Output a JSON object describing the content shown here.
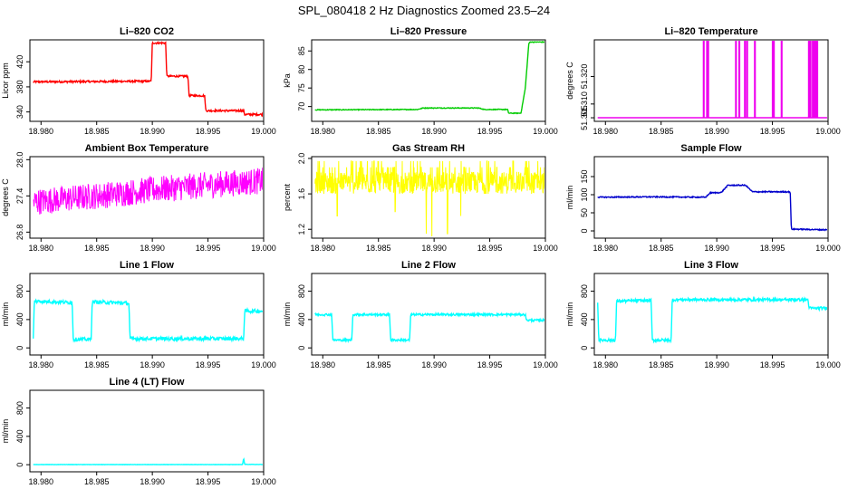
{
  "figure_title": "SPL_080418  2 Hz Diagnostics Zoomed 23.5–24",
  "chart_data": [
    {
      "id": "co2",
      "type": "line",
      "title": "Li–820 CO2",
      "xlabel": "",
      "ylabel": "Licor ppm",
      "color": "#ff0000",
      "xlim": [
        18.979,
        19.0
      ],
      "ylim": [
        325,
        455
      ],
      "xticks": [
        18.98,
        18.985,
        18.99,
        18.995,
        19.0
      ],
      "xtick_labels": [
        "18.980",
        "18.985",
        "18.990",
        "18.995",
        "19.000"
      ],
      "yticks": [
        340,
        380,
        420
      ],
      "ytick_labels": [
        "340",
        "380",
        "420"
      ],
      "noise": 1.5,
      "series": [
        {
          "x": [
            18.9793,
            18.9899,
            18.99,
            18.9912,
            18.9913,
            18.9932,
            18.9933,
            18.9947,
            18.9948,
            18.9982,
            18.9983,
            18.99995
          ],
          "y": [
            388,
            389,
            450,
            450,
            397,
            397,
            366,
            366,
            342,
            342,
            336,
            336
          ]
        }
      ]
    },
    {
      "id": "pressure",
      "type": "line",
      "title": "Li–820 Pressure",
      "xlabel": "",
      "ylabel": "kPa",
      "color": "#00cc00",
      "xlim": [
        18.979,
        19.0
      ],
      "ylim": [
        66,
        88
      ],
      "xticks": [
        18.98,
        18.985,
        18.99,
        18.995,
        19.0
      ],
      "xtick_labels": [
        "18.980",
        "18.985",
        "18.990",
        "18.995",
        "19.000"
      ],
      "yticks": [
        70,
        75,
        80,
        85
      ],
      "ytick_labels": [
        "70",
        "75",
        "80",
        "85"
      ],
      "noise": 0.1,
      "series": [
        {
          "x": [
            18.9793,
            18.9885,
            18.989,
            18.994,
            18.9945,
            18.9966,
            18.9967,
            18.9978,
            18.9982,
            18.9985,
            18.9986,
            19.0
          ],
          "y": [
            69.1,
            69.2,
            69.6,
            69.6,
            69.2,
            69.2,
            68.2,
            68.2,
            75,
            86.8,
            87.4,
            87.4
          ]
        }
      ]
    },
    {
      "id": "temperature",
      "type": "line",
      "title": "Li–820 Temperature",
      "xlabel": "",
      "ylabel": "degrees C",
      "color": "#ee00ee",
      "xlim": [
        18.979,
        19.0
      ],
      "ylim": [
        51.3037,
        51.3333
      ],
      "xticks": [
        18.98,
        18.985,
        18.99,
        18.995,
        19.0
      ],
      "xtick_labels": [
        "18.980",
        "18.985",
        "18.990",
        "18.995",
        "19.000"
      ],
      "yticks": [
        51.305,
        51.31,
        51.32
      ],
      "ytick_labels": [
        "51.305",
        "51.310",
        "51.320"
      ],
      "baseline": 51.305,
      "spike_top": 51.333,
      "spikes": [
        18.9888,
        18.9891,
        18.9892,
        18.9917,
        18.992,
        18.9925,
        18.9927,
        18.9934,
        18.995,
        18.9951,
        18.9958,
        18.99825,
        18.9984,
        18.9986,
        18.99875,
        18.9989,
        18.999
      ]
    },
    {
      "id": "ambient",
      "type": "line",
      "title": "Ambient Box Temperature",
      "xlabel": "",
      "ylabel": "degrees C",
      "color": "#ff00ff",
      "xlim": [
        18.979,
        19.0
      ],
      "ylim": [
        26.7,
        28.05
      ],
      "xticks": [
        18.98,
        18.985,
        18.99,
        18.995,
        19.0
      ],
      "xtick_labels": [
        "18.980",
        "18.985",
        "18.990",
        "18.995",
        "19.000"
      ],
      "yticks": [
        26.8,
        27.4,
        28.0
      ],
      "ytick_labels": [
        "26.8",
        "27.4",
        "28.0"
      ],
      "noise": 0.22,
      "series": [
        {
          "x": [
            18.9793,
            18.985,
            18.99,
            18.995,
            19.0
          ],
          "y": [
            27.3,
            27.4,
            27.5,
            27.58,
            27.65
          ]
        }
      ]
    },
    {
      "id": "rh",
      "type": "line",
      "title": "Gas Stream RH",
      "xlabel": "",
      "ylabel": "percent",
      "color": "#ffff00",
      "xlim": [
        18.979,
        19.0
      ],
      "ylim": [
        1.1,
        2.02
      ],
      "xticks": [
        18.98,
        18.985,
        18.99,
        18.995,
        19.0
      ],
      "xtick_labels": [
        "18.980",
        "18.985",
        "18.990",
        "18.995",
        "19.000"
      ],
      "yticks": [
        1.2,
        1.6,
        2.0
      ],
      "ytick_labels": [
        "1.2",
        "1.6",
        "2.0"
      ],
      "band": [
        1.6,
        1.85
      ],
      "dips": [
        [
          18.9813,
          1.35
        ],
        [
          18.9893,
          1.15
        ],
        [
          18.9898,
          1.12
        ],
        [
          18.9912,
          1.15
        ],
        [
          18.9924,
          1.35
        ],
        [
          18.9865,
          1.4
        ]
      ],
      "series": [
        {
          "x": [
            18.9793,
            19.0
          ],
          "y": [
            1.72,
            1.72
          ]
        }
      ]
    },
    {
      "id": "sample",
      "type": "line",
      "title": "Sample Flow",
      "xlabel": "",
      "ylabel": "ml/min",
      "color": "#0000cc",
      "xlim": [
        18.979,
        19.0
      ],
      "ylim": [
        -20,
        205
      ],
      "xticks": [
        18.98,
        18.985,
        18.99,
        18.995,
        19.0
      ],
      "xtick_labels": [
        "18.980",
        "18.985",
        "18.990",
        "18.995",
        "19.000"
      ],
      "yticks": [
        0,
        50,
        100,
        150
      ],
      "ytick_labels": [
        "0",
        "50",
        "100",
        "150"
      ],
      "noise": 1.5,
      "series": [
        {
          "x": [
            18.9793,
            18.984,
            18.989,
            18.9894,
            18.9904,
            18.991,
            18.9926,
            18.9932,
            18.9966,
            18.9967,
            18.99995
          ],
          "y": [
            93,
            94,
            93,
            105,
            106,
            126,
            126,
            108,
            108,
            5,
            3
          ]
        }
      ]
    },
    {
      "id": "line1",
      "type": "line",
      "title": "Line 1 Flow",
      "xlabel": "",
      "ylabel": "ml/min",
      "color": "#00ffff",
      "xlim": [
        18.979,
        19.0
      ],
      "ylim": [
        -100,
        1050
      ],
      "xticks": [
        18.98,
        18.985,
        18.99,
        18.995,
        19.0
      ],
      "xtick_labels": [
        "18.980",
        "18.985",
        "18.990",
        "18.995",
        "19.000"
      ],
      "yticks": [
        0,
        400,
        800
      ],
      "ytick_labels": [
        "0",
        "400",
        "800"
      ],
      "noise": 25,
      "series": [
        {
          "x": [
            18.9793,
            18.9794,
            18.9828,
            18.9829,
            18.9845,
            18.9846,
            18.9879,
            18.988,
            18.9982,
            18.9983,
            18.99995
          ],
          "y": [
            120,
            660,
            640,
            120,
            120,
            650,
            630,
            130,
            130,
            520,
            520
          ]
        }
      ]
    },
    {
      "id": "line2",
      "type": "line",
      "title": "Line 2 Flow",
      "xlabel": "",
      "ylabel": "ml/min",
      "color": "#00ffff",
      "xlim": [
        18.979,
        19.0
      ],
      "ylim": [
        -100,
        1050
      ],
      "xticks": [
        18.98,
        18.985,
        18.99,
        18.995,
        19.0
      ],
      "xtick_labels": [
        "18.980",
        "18.985",
        "18.990",
        "18.995",
        "19.000"
      ],
      "yticks": [
        0,
        400,
        800
      ],
      "ytick_labels": [
        "0",
        "400",
        "800"
      ],
      "noise": 15,
      "series": [
        {
          "x": [
            18.9793,
            18.9808,
            18.9809,
            18.9826,
            18.9827,
            18.986,
            18.9861,
            18.9878,
            18.9879,
            18.9982,
            18.9983,
            18.99995
          ],
          "y": [
            470,
            470,
            110,
            110,
            470,
            470,
            110,
            110,
            470,
            470,
            390,
            390
          ]
        }
      ]
    },
    {
      "id": "line3",
      "type": "line",
      "title": "Line 3 Flow",
      "xlabel": "",
      "ylabel": "ml/min",
      "color": "#00ffff",
      "xlim": [
        18.979,
        19.0
      ],
      "ylim": [
        -100,
        1050
      ],
      "xticks": [
        18.98,
        18.985,
        18.99,
        18.995,
        19.0
      ],
      "xtick_labels": [
        "18.980",
        "18.985",
        "18.990",
        "18.995",
        "19.000"
      ],
      "yticks": [
        0,
        400,
        800
      ],
      "ytick_labels": [
        "0",
        "400",
        "800"
      ],
      "noise": 20,
      "series": [
        {
          "x": [
            18.9793,
            18.9794,
            18.9809,
            18.981,
            18.9841,
            18.9842,
            18.9859,
            18.986,
            18.9982,
            18.9983,
            18.99995
          ],
          "y": [
            650,
            110,
            110,
            660,
            670,
            110,
            110,
            680,
            680,
            560,
            560
          ]
        }
      ]
    },
    {
      "id": "line4",
      "type": "line",
      "title": "Line 4 (LT) Flow",
      "xlabel": "",
      "ylabel": "ml/min",
      "color": "#00ffff",
      "xlim": [
        18.979,
        19.0
      ],
      "ylim": [
        -100,
        1050
      ],
      "xticks": [
        18.98,
        18.985,
        18.99,
        18.995,
        19.0
      ],
      "xtick_labels": [
        "18.980",
        "18.985",
        "18.990",
        "18.995",
        "19.000"
      ],
      "yticks": [
        0,
        400,
        800
      ],
      "ytick_labels": [
        "0",
        "400",
        "800"
      ],
      "noise": 2,
      "series": [
        {
          "x": [
            18.9793,
            18.9981,
            18.9982,
            18.9983,
            18.99995
          ],
          "y": [
            2,
            2,
            90,
            5,
            3
          ]
        }
      ]
    }
  ]
}
